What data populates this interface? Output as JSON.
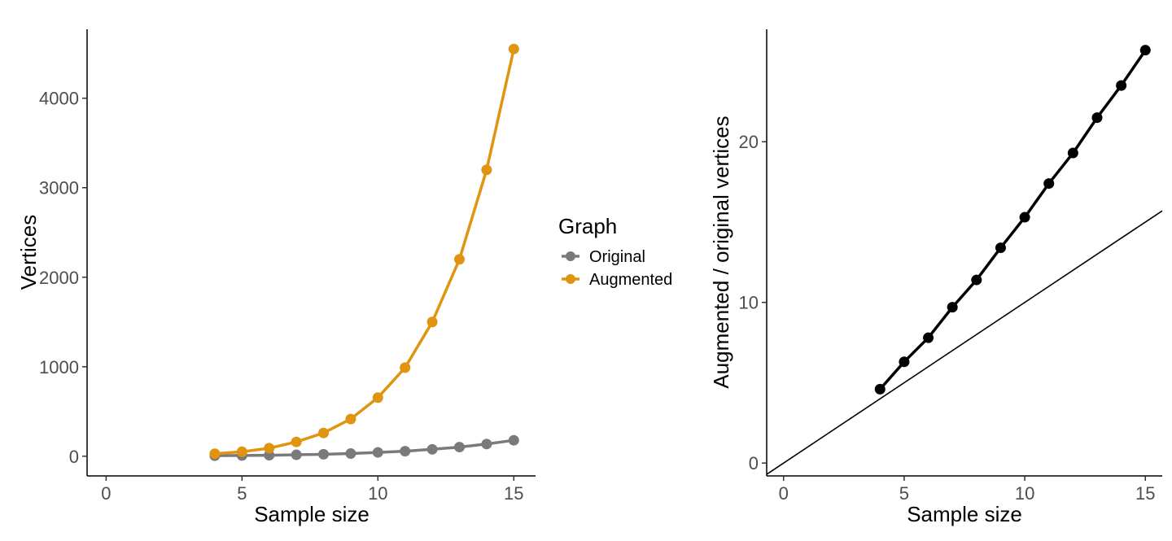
{
  "chart_data": [
    {
      "type": "line",
      "xlabel": "Sample size",
      "ylabel": "Vertices",
      "xlim": [
        -0.7,
        15.8
      ],
      "ylim": [
        -220,
        4770
      ],
      "xticks": [
        0,
        5,
        10,
        15
      ],
      "yticks": [
        0,
        1000,
        2000,
        3000,
        4000
      ],
      "legend": {
        "title": "Graph",
        "placement": "right"
      },
      "x": [
        4,
        5,
        6,
        7,
        8,
        9,
        10,
        11,
        12,
        13,
        14,
        15
      ],
      "series": [
        {
          "name": "Original",
          "color": "#7a7a7a",
          "values": [
            6,
            8,
            11,
            16,
            22,
            30,
            43,
            56,
            77,
            102,
            136,
            178
          ]
        },
        {
          "name": "Augmented",
          "color": "#e0940f",
          "values": [
            28,
            50,
            90,
            160,
            260,
            415,
            655,
            990,
            1500,
            2200,
            3200,
            4550
          ]
        }
      ]
    },
    {
      "type": "line",
      "xlabel": "Sample size",
      "ylabel": "Augmented / original vertices",
      "xlim": [
        -0.7,
        15.7
      ],
      "ylim": [
        -0.8,
        27.0
      ],
      "xticks": [
        0,
        5,
        10,
        15
      ],
      "yticks": [
        0,
        10,
        20
      ],
      "x": [
        4,
        5,
        6,
        7,
        8,
        9,
        10,
        11,
        12,
        13,
        14,
        15
      ],
      "series": [
        {
          "color": "#000000",
          "values": [
            4.6,
            6.3,
            7.8,
            9.7,
            11.4,
            13.4,
            15.3,
            17.4,
            19.3,
            21.5,
            23.5,
            25.7
          ]
        }
      ],
      "reference_line": {
        "intercept": 0,
        "slope": 1,
        "color": "#000000"
      }
    }
  ]
}
